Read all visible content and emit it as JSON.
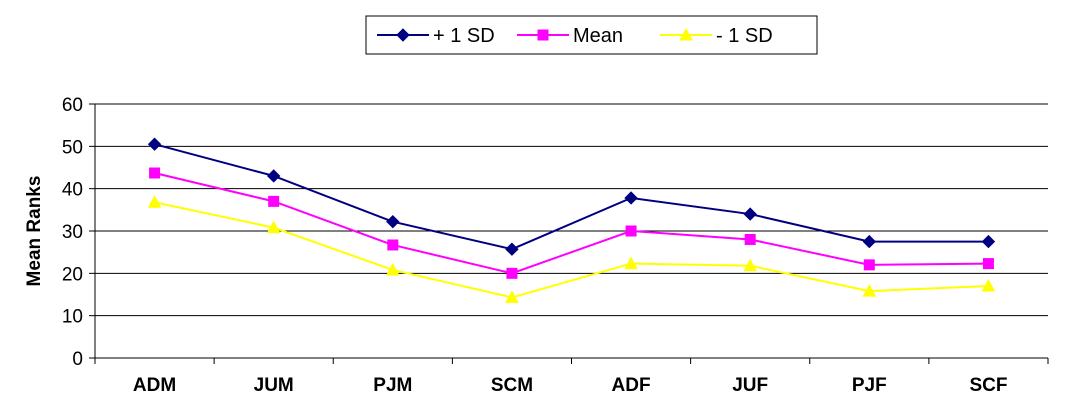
{
  "chart_data": {
    "type": "line",
    "title": "",
    "xlabel": "",
    "ylabel": "Mean Ranks",
    "categories": [
      "ADM",
      "JUM",
      "PJM",
      "SCM",
      "ADF",
      "JUF",
      "PJF",
      "SCF"
    ],
    "ylim": [
      0,
      60
    ],
    "yticks": [
      0,
      10,
      20,
      30,
      40,
      50,
      60
    ],
    "grid": true,
    "legend": "top-center",
    "series": [
      {
        "name": "+ 1 SD",
        "color": "#000080",
        "marker": "diamond",
        "values": [
          50.5,
          43,
          32.2,
          25.7,
          37.8,
          34,
          27.5,
          27.5
        ]
      },
      {
        "name": "Mean",
        "color": "#ff00ff",
        "marker": "square",
        "values": [
          43.7,
          37,
          26.7,
          20,
          30,
          28,
          22,
          22.3
        ]
      },
      {
        "name": "- 1 SD",
        "color": "#ffff00",
        "marker": "triangle",
        "values": [
          36.8,
          30.8,
          20.8,
          14.3,
          22.3,
          21.8,
          15.8,
          17
        ]
      }
    ]
  }
}
